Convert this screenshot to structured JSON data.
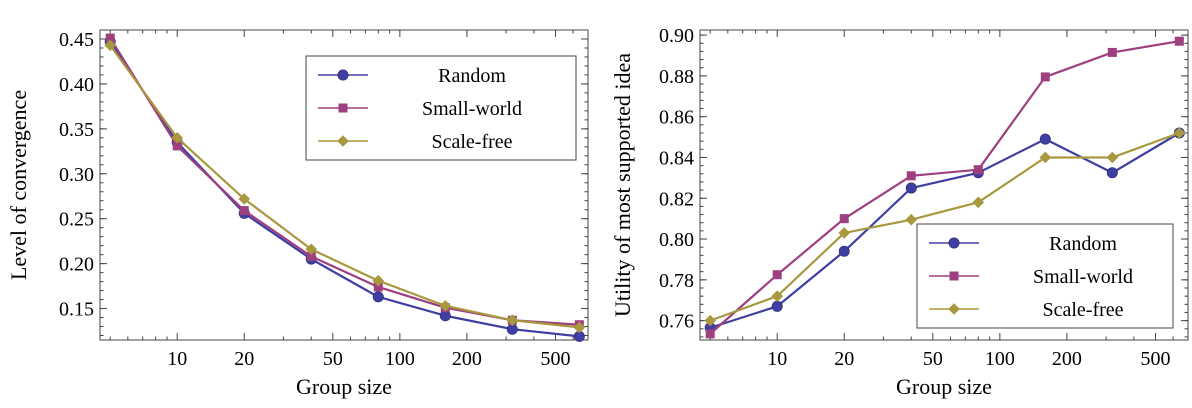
{
  "chart_data": [
    {
      "type": "line",
      "xscale": "log",
      "xlabel": "Group size",
      "ylabel": "Level of convergence",
      "x": [
        5,
        10,
        20,
        40,
        80,
        160,
        320,
        640
      ],
      "xticks": [
        10,
        20,
        50,
        100,
        200,
        500
      ],
      "xtick_labels": [
        "10",
        "20",
        "50",
        "100",
        "200",
        "500"
      ],
      "ylim": [
        0.115,
        0.46
      ],
      "yticks": [
        0.15,
        0.2,
        0.25,
        0.3,
        0.35,
        0.4,
        0.45
      ],
      "ytick_labels": [
        "0.15",
        "0.20",
        "0.25",
        "0.30",
        "0.35",
        "0.40",
        "0.45"
      ],
      "grid": false,
      "legend": "top-right",
      "series": [
        {
          "name": "Random",
          "color": "#3f3fa3",
          "marker": "circle",
          "values": [
            0.447,
            0.335,
            0.256,
            0.205,
            0.163,
            0.142,
            0.127,
            0.119
          ]
        },
        {
          "name": "Small-world",
          "color": "#9e3f7f",
          "marker": "square",
          "values": [
            0.451,
            0.331,
            0.259,
            0.208,
            0.174,
            0.151,
            0.137,
            0.132
          ]
        },
        {
          "name": "Scale-free",
          "color": "#a8983f",
          "marker": "diamond",
          "values": [
            0.443,
            0.34,
            0.272,
            0.216,
            0.181,
            0.153,
            0.137,
            0.129
          ]
        }
      ]
    },
    {
      "type": "line",
      "xscale": "log",
      "xlabel": "Group size",
      "ylabel": "Utility of most supported idea",
      "x": [
        5,
        10,
        20,
        40,
        80,
        160,
        320,
        640
      ],
      "xticks": [
        10,
        20,
        50,
        100,
        200,
        500
      ],
      "xtick_labels": [
        "10",
        "20",
        "50",
        "100",
        "200",
        "500"
      ],
      "ylim": [
        0.7505,
        0.9025
      ],
      "yticks": [
        0.76,
        0.78,
        0.8,
        0.82,
        0.84,
        0.86,
        0.88,
        0.9
      ],
      "ytick_labels": [
        "0.76",
        "0.78",
        "0.80",
        "0.82",
        "0.84",
        "0.86",
        "0.88",
        "0.90"
      ],
      "grid": false,
      "legend": "bottom-right",
      "series": [
        {
          "name": "Random",
          "color": "#3f3fa3",
          "marker": "circle",
          "values": [
            0.7565,
            0.767,
            0.794,
            0.825,
            0.8325,
            0.849,
            0.8325,
            0.852
          ]
        },
        {
          "name": "Small-world",
          "color": "#9e3f7f",
          "marker": "square",
          "values": [
            0.7535,
            0.7825,
            0.81,
            0.831,
            0.834,
            0.8795,
            0.8915,
            0.897
          ]
        },
        {
          "name": "Scale-free",
          "color": "#a8983f",
          "marker": "diamond",
          "values": [
            0.76,
            0.772,
            0.803,
            0.8095,
            0.818,
            0.84,
            0.84,
            0.852
          ]
        }
      ]
    }
  ]
}
